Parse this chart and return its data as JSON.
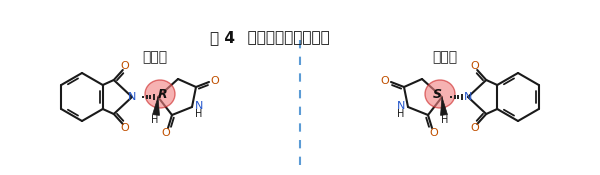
{
  "title_bold": "图 4",
  "title_rest": "   沙利度胺的分子结构",
  "left_label": "镇定剂",
  "right_label": "致畸剂",
  "left_chiral": "R",
  "right_chiral": "S",
  "bg_color": "#ffffff",
  "chiral_fill": "#f08080",
  "chiral_alpha": 0.6,
  "line_color": "#1a1a1a",
  "dashed_color": "#5b9bd5",
  "o_color": "#c05000",
  "n_color": "#2255cc"
}
